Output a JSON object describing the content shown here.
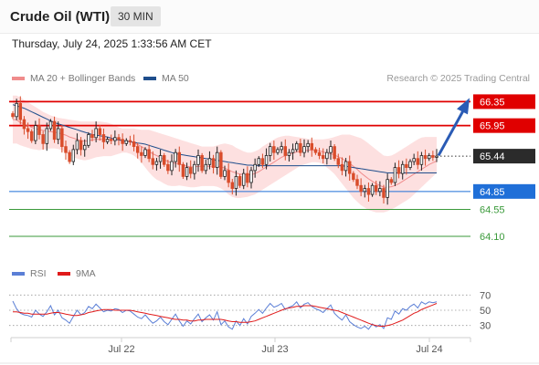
{
  "header": {
    "instrument": "Crude Oil (WTI)",
    "timeframe": "30 MIN",
    "timestamp": "Thursday, July 24, 2025 1:33:56 AM CET"
  },
  "legend": {
    "ma20_label": "MA 20 + Bollinger Bands",
    "ma20_color": "#f08c8c",
    "ma50_label": "MA 50",
    "ma50_color": "#1f4e8c",
    "credit": "Research © 2025 Trading Central",
    "rsi_label": "RSI",
    "rsi_color": "#5b7fd6",
    "ma9_label": "9MA",
    "ma9_color": "#e01a1a"
  },
  "chart_data": [
    {
      "type": "candlestick",
      "ylim": [
        63.75,
        66.6
      ],
      "x_ticks": [
        "Jul 22",
        "Jul 23",
        "Jul 24"
      ],
      "last_price": 65.44,
      "levels": [
        {
          "label": "66.35",
          "value": 66.35,
          "kind": "resistance",
          "color": "#e00000"
        },
        {
          "label": "65.95",
          "value": 65.95,
          "kind": "resistance",
          "color": "#e00000"
        },
        {
          "label": "64.85",
          "value": 64.85,
          "kind": "support",
          "color": "#1f6fd8"
        },
        {
          "label": "64.55",
          "value": 64.55,
          "kind": "support",
          "color": "#3a9a3a"
        },
        {
          "label": "64.10",
          "value": 64.1,
          "kind": "support",
          "color": "#3a9a3a"
        }
      ],
      "forecast_arrow": {
        "from": 65.45,
        "to": 66.35
      },
      "closes": [
        66.1,
        66.32,
        66.05,
        65.9,
        65.85,
        65.7,
        65.95,
        65.8,
        65.65,
        65.9,
        66.02,
        65.72,
        65.9,
        65.6,
        65.5,
        65.35,
        65.55,
        65.7,
        65.55,
        65.62,
        65.8,
        65.75,
        65.9,
        65.8,
        65.68,
        65.72,
        65.7,
        65.75,
        65.72,
        65.65,
        65.7,
        65.68,
        65.6,
        65.5,
        65.45,
        65.55,
        65.4,
        65.3,
        65.35,
        65.45,
        65.3,
        65.2,
        65.35,
        65.5,
        65.3,
        65.1,
        65.25,
        65.15,
        65.3,
        65.45,
        65.2,
        65.3,
        65.4,
        65.25,
        65.5,
        65.1,
        65.2,
        65.0,
        64.9,
        65.1,
        64.95,
        65.15,
        65.0,
        65.2,
        65.3,
        65.4,
        65.3,
        65.45,
        65.6,
        65.5,
        65.55,
        65.6,
        65.45,
        65.5,
        65.55,
        65.65,
        65.5,
        65.6,
        65.65,
        65.55,
        65.5,
        65.45,
        65.4,
        65.5,
        65.6,
        65.4,
        65.3,
        65.2,
        65.35,
        65.15,
        65.05,
        64.95,
        64.85,
        64.9,
        64.8,
        64.95,
        64.85,
        64.9,
        64.75,
        65.05,
        65.0,
        65.25,
        65.15,
        65.3,
        65.25,
        65.35,
        65.4,
        65.3,
        65.45,
        65.4,
        65.45,
        65.42,
        65.44
      ],
      "ma20": [
        66.05,
        66.05,
        66.0,
        65.98,
        65.95,
        65.92,
        65.9,
        65.88,
        65.87,
        65.86,
        65.85,
        65.84,
        65.83,
        65.81,
        65.79,
        65.76,
        65.74,
        65.72,
        65.7,
        65.69,
        65.7,
        65.71,
        65.72,
        65.72,
        65.72,
        65.72,
        65.72,
        65.72,
        65.71,
        65.7,
        65.69,
        65.68,
        65.66,
        65.63,
        65.6,
        65.56,
        65.52,
        65.48,
        65.45,
        65.42,
        65.38,
        65.35,
        65.33,
        65.32,
        65.31,
        65.29,
        65.27,
        65.26,
        65.26,
        65.27,
        65.27,
        65.27,
        65.27,
        65.27,
        65.27,
        65.26,
        65.24,
        65.21,
        65.18,
        65.16,
        65.14,
        65.13,
        65.13,
        65.13,
        65.15,
        65.18,
        65.22,
        65.26,
        65.3,
        65.34,
        65.38,
        65.42,
        65.45,
        65.47,
        65.49,
        65.51,
        65.52,
        65.53,
        65.54,
        65.54,
        65.54,
        65.53,
        65.51,
        65.49,
        65.48,
        65.46,
        65.43,
        65.4,
        65.36,
        65.32,
        65.27,
        65.22,
        65.16,
        65.11,
        65.06,
        65.02,
        64.98,
        64.95,
        64.92,
        64.92,
        64.93,
        64.95,
        64.98,
        65.02,
        65.06,
        65.1,
        65.14,
        65.18,
        65.22,
        65.26,
        65.3,
        65.33,
        65.36
      ],
      "bb_upper": [
        66.45,
        66.45,
        66.42,
        66.38,
        66.34,
        66.3,
        66.26,
        66.22,
        66.18,
        66.15,
        66.12,
        66.1,
        66.08,
        66.07,
        66.06,
        66.05,
        66.04,
        66.03,
        66.02,
        66.02,
        66.02,
        66.02,
        66.02,
        66.02,
        66.01,
        66.0,
        65.98,
        65.95,
        65.92,
        65.9,
        65.9,
        65.9,
        65.9,
        65.89,
        65.88,
        65.88,
        65.88,
        65.86,
        65.84,
        65.82,
        65.8,
        65.78,
        65.76,
        65.74,
        65.72,
        65.7,
        65.68,
        65.66,
        65.64,
        65.62,
        65.6,
        65.6,
        65.6,
        65.6,
        65.62,
        65.64,
        65.65,
        65.64,
        65.62,
        65.58,
        65.55,
        65.52,
        65.5,
        65.5,
        65.52,
        65.55,
        65.6,
        65.64,
        65.68,
        65.72,
        65.75,
        65.77,
        65.78,
        65.78,
        65.77,
        65.76,
        65.75,
        65.74,
        65.73,
        65.72,
        65.72,
        65.72,
        65.72,
        65.73,
        65.74,
        65.76,
        65.78,
        65.8,
        65.8,
        65.8,
        65.78,
        65.76,
        65.74,
        65.7,
        65.65,
        65.6,
        65.55,
        65.5,
        65.45,
        65.44,
        65.45,
        65.48,
        65.52,
        65.56,
        65.6,
        65.64,
        65.68,
        65.72,
        65.75,
        65.76,
        65.76,
        65.76,
        65.76
      ],
      "bb_lower": [
        65.65,
        65.65,
        65.62,
        65.6,
        65.58,
        65.56,
        65.55,
        65.54,
        65.55,
        65.56,
        65.57,
        65.57,
        65.56,
        65.54,
        65.5,
        65.46,
        65.42,
        65.4,
        65.38,
        65.37,
        65.38,
        65.4,
        65.42,
        65.43,
        65.44,
        65.44,
        65.44,
        65.46,
        65.48,
        65.5,
        65.5,
        65.48,
        65.45,
        65.4,
        65.33,
        65.25,
        65.17,
        65.1,
        65.05,
        65.02,
        64.98,
        64.95,
        64.94,
        64.94,
        64.95,
        64.94,
        64.93,
        64.92,
        64.92,
        64.93,
        64.94,
        64.94,
        64.94,
        64.94,
        64.93,
        64.9,
        64.86,
        64.8,
        64.76,
        64.74,
        64.74,
        64.75,
        64.76,
        64.78,
        64.8,
        64.84,
        64.88,
        64.92,
        64.96,
        65.0,
        65.04,
        65.08,
        65.12,
        65.16,
        65.2,
        65.24,
        65.28,
        65.3,
        65.32,
        65.34,
        65.34,
        65.33,
        65.3,
        65.25,
        65.2,
        65.14,
        65.06,
        64.98,
        64.9,
        64.82,
        64.74,
        64.68,
        64.62,
        64.58,
        64.54,
        64.52,
        64.5,
        64.5,
        64.5,
        64.52,
        64.55,
        64.58,
        64.62,
        64.66,
        64.7,
        64.74,
        64.8,
        64.86,
        64.92,
        64.98,
        65.04,
        65.1,
        65.16
      ],
      "ma50": [
        66.3,
        66.28,
        66.26,
        66.24,
        66.21,
        66.18,
        66.15,
        66.12,
        66.09,
        66.06,
        66.03,
        66.0,
        65.98,
        65.96,
        65.94,
        65.92,
        65.9,
        65.88,
        65.86,
        65.84,
        65.82,
        65.8,
        65.79,
        65.78,
        65.77,
        65.76,
        65.74,
        65.72,
        65.71,
        65.7,
        65.69,
        65.68,
        65.67,
        65.66,
        65.65,
        65.64,
        65.62,
        65.6,
        65.58,
        65.56,
        65.54,
        65.52,
        65.5,
        65.48,
        65.47,
        65.46,
        65.45,
        65.44,
        65.43,
        65.42,
        65.41,
        65.4,
        65.39,
        65.38,
        65.37,
        65.36,
        65.35,
        65.34,
        65.33,
        65.32,
        65.31,
        65.3,
        65.29,
        65.29,
        65.28,
        65.28,
        65.28,
        65.28,
        65.28,
        65.28,
        65.28,
        65.28,
        65.28,
        65.28,
        65.28,
        65.28,
        65.28,
        65.28,
        65.28,
        65.28,
        65.28,
        65.28,
        65.28,
        65.28,
        65.28,
        65.28,
        65.28,
        65.28,
        65.27,
        65.26,
        65.25,
        65.24,
        65.23,
        65.22,
        65.21,
        65.2,
        65.19,
        65.18,
        65.17,
        65.16,
        65.16,
        65.16,
        65.16,
        65.16,
        65.16,
        65.16,
        65.16,
        65.16,
        65.16,
        65.16,
        65.16,
        65.16,
        65.16
      ]
    },
    {
      "type": "line",
      "ylim": [
        20,
        80
      ],
      "y_ticks": [
        "70",
        "50",
        "30"
      ],
      "series": [
        {
          "name": "RSI",
          "values": [
            62,
            52,
            46,
            44,
            43,
            41,
            50,
            45,
            42,
            48,
            56,
            44,
            50,
            40,
            37,
            33,
            42,
            50,
            44,
            47,
            55,
            52,
            58,
            53,
            48,
            50,
            49,
            52,
            51,
            47,
            50,
            49,
            45,
            41,
            39,
            44,
            38,
            33,
            36,
            41,
            35,
            31,
            38,
            45,
            36,
            29,
            36,
            32,
            39,
            45,
            35,
            40,
            44,
            37,
            48,
            31,
            36,
            28,
            25,
            36,
            30,
            39,
            32,
            42,
            46,
            51,
            46,
            53,
            59,
            54,
            56,
            59,
            51,
            54,
            56,
            61,
            53,
            58,
            60,
            55,
            52,
            50,
            47,
            52,
            57,
            46,
            41,
            37,
            44,
            35,
            31,
            28,
            26,
            29,
            25,
            32,
            28,
            31,
            26,
            40,
            38,
            49,
            45,
            52,
            50,
            55,
            58,
            53,
            61,
            58,
            61,
            60,
            61
          ]
        },
        {
          "name": "9MA",
          "values": [
            48,
            48,
            47,
            46,
            46,
            45,
            45,
            45,
            45,
            45,
            46,
            47,
            47,
            46,
            45,
            44,
            43,
            43,
            44,
            45,
            47,
            48,
            49,
            50,
            51,
            51,
            51,
            50,
            50,
            50,
            50,
            50,
            49,
            48,
            47,
            46,
            45,
            44,
            43,
            42,
            41,
            40,
            39,
            38,
            38,
            37,
            37,
            36,
            36,
            37,
            37,
            38,
            38,
            38,
            38,
            38,
            37,
            36,
            35,
            35,
            34,
            34,
            34,
            35,
            36,
            38,
            40,
            42,
            44,
            46,
            48,
            50,
            52,
            53,
            54,
            55,
            55,
            56,
            56,
            56,
            55,
            54,
            53,
            52,
            51,
            50,
            49,
            47,
            45,
            43,
            41,
            39,
            37,
            35,
            33,
            31,
            30,
            29,
            29,
            30,
            31,
            33,
            35,
            37,
            40,
            43,
            46,
            48,
            51,
            53,
            55,
            57,
            59
          ]
        }
      ]
    }
  ],
  "x_axis": {
    "ticks": [
      "Jul 22",
      "Jul 23",
      "Jul 24"
    ]
  }
}
